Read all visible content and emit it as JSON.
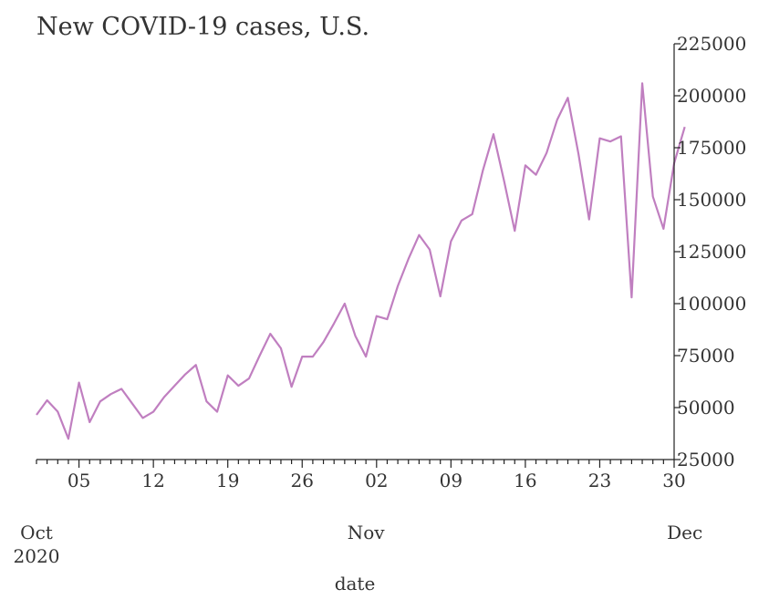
{
  "chart_data": {
    "type": "line",
    "title": "New COVID-19 cases, U.S.",
    "xlabel": "date",
    "ylabel": "",
    "ylim": [
      25000,
      225000
    ],
    "xlim": [
      "2020-10-01",
      "2020-11-30"
    ],
    "y_axis_side": "right",
    "grid": false,
    "color": "#c07fc0",
    "y_ticks": [
      25000,
      50000,
      75000,
      100000,
      125000,
      150000,
      175000,
      200000,
      225000
    ],
    "x_major_ticks": [
      {
        "date": "2020-10-05",
        "label": "05"
      },
      {
        "date": "2020-10-12",
        "label": "12"
      },
      {
        "date": "2020-10-19",
        "label": "19"
      },
      {
        "date": "2020-10-26",
        "label": "26"
      },
      {
        "date": "2020-11-02",
        "label": "02"
      },
      {
        "date": "2020-11-09",
        "label": "09"
      },
      {
        "date": "2020-11-16",
        "label": "16"
      },
      {
        "date": "2020-11-23",
        "label": "23"
      },
      {
        "date": "2020-11-30",
        "label": "30"
      }
    ],
    "month_labels": [
      {
        "date": "2020-10-01",
        "line1": "Oct",
        "line2": "2020"
      },
      {
        "date": "2020-11-01",
        "line1": "Nov",
        "line2": ""
      },
      {
        "date": "2020-12-01",
        "line1": "Dec",
        "line2": ""
      }
    ],
    "series": [
      {
        "x": [
          "2020-10-01",
          "2020-10-02",
          "2020-10-03",
          "2020-10-04",
          "2020-10-05",
          "2020-10-06",
          "2020-10-07",
          "2020-10-08",
          "2020-10-09",
          "2020-10-10",
          "2020-10-11",
          "2020-10-12",
          "2020-10-13",
          "2020-10-14",
          "2020-10-15",
          "2020-10-16",
          "2020-10-17",
          "2020-10-18",
          "2020-10-19",
          "2020-10-20",
          "2020-10-21",
          "2020-10-22",
          "2020-10-23",
          "2020-10-24",
          "2020-10-25",
          "2020-10-26",
          "2020-10-27",
          "2020-10-28",
          "2020-10-29",
          "2020-10-30",
          "2020-10-31",
          "2020-11-01",
          "2020-11-02",
          "2020-11-03",
          "2020-11-04",
          "2020-11-05",
          "2020-11-06",
          "2020-11-07",
          "2020-11-08",
          "2020-11-09",
          "2020-11-10",
          "2020-11-11",
          "2020-11-12",
          "2020-11-13",
          "2020-11-14",
          "2020-11-15",
          "2020-11-16",
          "2020-11-17",
          "2020-11-18",
          "2020-11-19",
          "2020-11-20",
          "2020-11-21",
          "2020-11-22",
          "2020-11-23",
          "2020-11-24",
          "2020-11-25",
          "2020-11-26",
          "2020-11-27",
          "2020-11-28",
          "2020-11-29",
          "2020-11-30",
          "2020-12-01"
        ],
        "values": [
          46500,
          53500,
          48000,
          35000,
          62000,
          43000,
          53000,
          56500,
          59000,
          52000,
          45000,
          48000,
          55000,
          60500,
          66000,
          70500,
          53000,
          48000,
          65500,
          60500,
          64000,
          75000,
          85500,
          78500,
          60000,
          74500,
          74500,
          81500,
          90500,
          100000,
          84500,
          74500,
          94000,
          92500,
          108500,
          121500,
          133000,
          126000,
          103500,
          130000,
          140000,
          143000,
          164000,
          181500,
          159000,
          135000,
          166500,
          162000,
          172500,
          188500,
          199000,
          172000,
          140500,
          179500,
          178000,
          180500,
          103000,
          206000,
          151500,
          136000,
          167500,
          185000
        ]
      }
    ]
  }
}
